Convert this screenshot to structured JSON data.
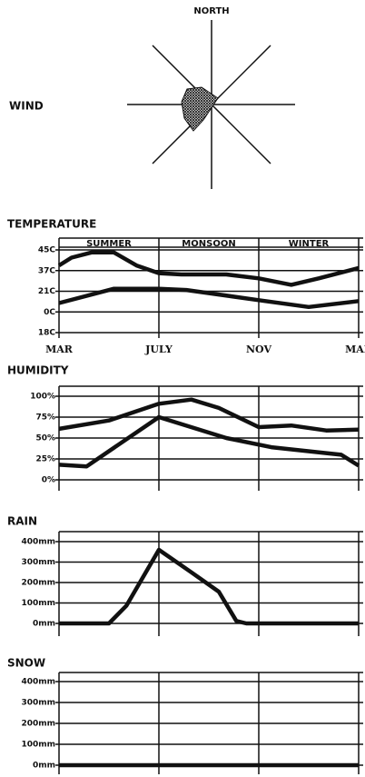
{
  "wind": {
    "label": "WIND",
    "north": "NORTH"
  },
  "chart_data": [
    {
      "type": "line",
      "title": "TEMPERATURE",
      "seasons": [
        {
          "label": "SUMMER",
          "start": 0,
          "end": 4
        },
        {
          "label": "MONSOON",
          "start": 4,
          "end": 8
        },
        {
          "label": "WINTER",
          "start": 8,
          "end": 12
        }
      ],
      "xlim": [
        0,
        12
      ],
      "xticks": [
        {
          "value": 0,
          "label": "MAR"
        },
        {
          "value": 4,
          "label": "JULY"
        },
        {
          "value": 8,
          "label": "NOV"
        },
        {
          "value": 12,
          "label": "MAR"
        }
      ],
      "ylim": [
        -18,
        45
      ],
      "yticks": [
        {
          "value": 45,
          "label": "45C"
        },
        {
          "value": 37,
          "label": "37C"
        },
        {
          "value": 21,
          "label": "21C"
        },
        {
          "value": 0,
          "label": "0C"
        },
        {
          "value": -18,
          "label": "18C"
        }
      ],
      "series": [
        {
          "color": "#111111",
          "x": [
            0,
            0.5,
            1.3,
            2.2,
            3.1,
            4,
            4.9,
            6.7,
            8,
            9.3,
            10.4,
            12
          ],
          "values": [
            39,
            42,
            44,
            44,
            39,
            35,
            34,
            34,
            31,
            26,
            31,
            38
          ]
        },
        {
          "color": "#111111",
          "x": [
            0,
            2.2,
            4,
            5.1,
            8,
            10,
            12
          ],
          "values": [
            9,
            23,
            23,
            22,
            12,
            5,
            11
          ]
        }
      ]
    },
    {
      "type": "line",
      "title": "HUMIDITY",
      "xlim": [
        0,
        12
      ],
      "ylim": [
        0,
        100
      ],
      "yticks": [
        {
          "value": 100,
          "label": "100%"
        },
        {
          "value": 75,
          "label": "75%"
        },
        {
          "value": 50,
          "label": "50%"
        },
        {
          "value": 25,
          "label": "25%"
        },
        {
          "value": 0,
          "label": "0%"
        }
      ],
      "series": [
        {
          "color": "#111111",
          "x": [
            0,
            2,
            4,
            5.3,
            6.4,
            8,
            9.3,
            10.7,
            12
          ],
          "values": [
            61,
            71,
            91,
            96,
            86,
            63,
            65,
            59,
            60
          ]
        },
        {
          "color": "#111111",
          "x": [
            0,
            1.1,
            4,
            6.7,
            8.5,
            10.7,
            11.3,
            12
          ],
          "values": [
            18,
            16,
            75,
            50,
            39,
            32,
            30,
            17
          ]
        }
      ]
    },
    {
      "type": "line",
      "title": "RAIN",
      "xlim": [
        0,
        12
      ],
      "ylim": [
        0,
        400
      ],
      "yticks": [
        {
          "value": 400,
          "label": "400mm"
        },
        {
          "value": 300,
          "label": "300mm"
        },
        {
          "value": 200,
          "label": "200mm"
        },
        {
          "value": 100,
          "label": "100mm"
        },
        {
          "value": 0,
          "label": "0mm"
        }
      ],
      "series": [
        {
          "color": "#111111",
          "x": [
            0,
            2,
            2.7,
            4,
            5.3,
            6.4,
            7.1,
            7.5,
            12
          ],
          "values": [
            0,
            0,
            87,
            360,
            250,
            155,
            12,
            0,
            0
          ]
        }
      ]
    },
    {
      "type": "line",
      "title": "SNOW",
      "xlim": [
        0,
        12
      ],
      "ylim": [
        0,
        400
      ],
      "yticks": [
        {
          "value": 400,
          "label": "400mm"
        },
        {
          "value": 300,
          "label": "300mm"
        },
        {
          "value": 200,
          "label": "200mm"
        },
        {
          "value": 100,
          "label": "100mm"
        },
        {
          "value": 0,
          "label": "0mm"
        }
      ],
      "series": [
        {
          "color": "#111111",
          "x": [
            0,
            12
          ],
          "values": [
            0,
            0
          ]
        }
      ]
    }
  ]
}
